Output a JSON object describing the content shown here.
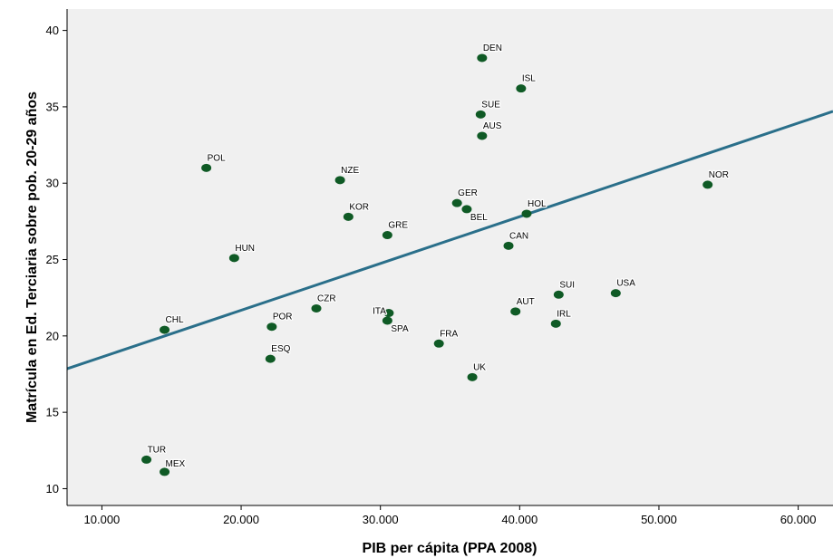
{
  "chart_data": {
    "type": "scatter",
    "title": "",
    "xlabel": "PIB per cápita (PPA 2008)",
    "ylabel": "Matrícula en Ed. Terciaria sobre pob. 20-29 años",
    "xlim": [
      7500,
      62500
    ],
    "ylim": [
      8.9,
      41.4
    ],
    "x_ticks": [
      10000,
      20000,
      30000,
      40000,
      50000,
      60000
    ],
    "x_tick_labels": [
      "10.000",
      "20.000",
      "30.000",
      "40.000",
      "50.000",
      "60.000"
    ],
    "y_ticks": [
      10,
      15,
      20,
      25,
      30,
      35,
      40
    ],
    "y_tick_labels": [
      "10",
      "15",
      "20",
      "25",
      "30",
      "35",
      "40"
    ],
    "grid": false,
    "colors": {
      "plot_background": "#f0f0f0",
      "point": "#0f5a25",
      "fit_line": "#2a6f8a"
    },
    "points": [
      {
        "label": "DEN",
        "x": 37300,
        "y": 38.2
      },
      {
        "label": "ISL",
        "x": 40100,
        "y": 36.2
      },
      {
        "label": "SUE",
        "x": 37200,
        "y": 34.5
      },
      {
        "label": "AUS",
        "x": 37300,
        "y": 33.1
      },
      {
        "label": "POL",
        "x": 17500,
        "y": 31.0
      },
      {
        "label": "NZE",
        "x": 27100,
        "y": 30.2
      },
      {
        "label": "NOR",
        "x": 53500,
        "y": 29.9
      },
      {
        "label": "GER",
        "x": 35500,
        "y": 28.7
      },
      {
        "label": "BEL",
        "x": 36200,
        "y": 28.3
      },
      {
        "label": "HOL",
        "x": 40500,
        "y": 28.0
      },
      {
        "label": "KOR",
        "x": 27700,
        "y": 27.8
      },
      {
        "label": "GRE",
        "x": 30500,
        "y": 26.6
      },
      {
        "label": "CAN",
        "x": 39200,
        "y": 25.9
      },
      {
        "label": "HUN",
        "x": 19500,
        "y": 25.1
      },
      {
        "label": "USA",
        "x": 46900,
        "y": 22.8
      },
      {
        "label": "SUI",
        "x": 42800,
        "y": 22.7
      },
      {
        "label": "CZR",
        "x": 25400,
        "y": 21.8
      },
      {
        "label": "AUT",
        "x": 39700,
        "y": 21.6
      },
      {
        "label": "ITA",
        "x": 30600,
        "y": 21.5
      },
      {
        "label": "SPA",
        "x": 30500,
        "y": 21.0
      },
      {
        "label": "IRL",
        "x": 42600,
        "y": 20.8
      },
      {
        "label": "POR",
        "x": 22200,
        "y": 20.6
      },
      {
        "label": "CHL",
        "x": 14500,
        "y": 20.4
      },
      {
        "label": "FRA",
        "x": 34200,
        "y": 19.5
      },
      {
        "label": "ESQ",
        "x": 22100,
        "y": 18.5
      },
      {
        "label": "UK",
        "x": 36600,
        "y": 17.3
      },
      {
        "label": "TUR",
        "x": 13200,
        "y": 11.9
      },
      {
        "label": "MEX",
        "x": 14500,
        "y": 11.1
      }
    ],
    "fit_line": {
      "x": [
        7500,
        62500
      ],
      "y": [
        17.85,
        34.7
      ]
    }
  }
}
